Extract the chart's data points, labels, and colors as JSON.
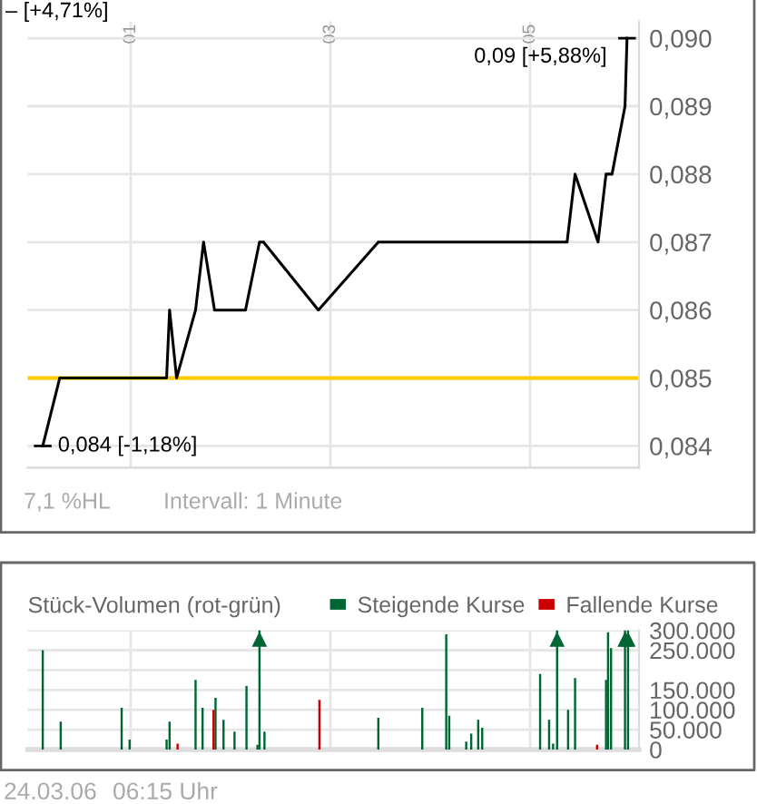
{
  "chart_data": [
    {
      "type": "line",
      "x": [
        0.12,
        0.29,
        1.36,
        1.39,
        1.46,
        1.65,
        1.73,
        1.84,
        2.15,
        2.29,
        2.33,
        2.88,
        3.48,
        5.37,
        5.45,
        5.68,
        5.76,
        5.82,
        5.95,
        5.97
      ],
      "series": [
        {
          "color": "#000000",
          "values": [
            0.084,
            0.085,
            0.085,
            0.086,
            0.085,
            0.086,
            0.087,
            0.086,
            0.086,
            0.087,
            0.087,
            0.086,
            0.087,
            0.087,
            0.088,
            0.087,
            0.088,
            0.088,
            0.089,
            0.09
          ]
        }
      ],
      "xlim": [
        -0.03,
        6.09
      ],
      "xticks": [
        {
          "value": 1,
          "label": "01"
        },
        {
          "value": 3,
          "label": "03"
        },
        {
          "value": 5,
          "label": "05"
        }
      ],
      "ylim": [
        0.08368,
        0.09025
      ],
      "yticks": [
        {
          "value": 0.084,
          "label": "0,084"
        },
        {
          "value": 0.085,
          "label": "0,085"
        },
        {
          "value": 0.086,
          "label": "0,086"
        },
        {
          "value": 0.087,
          "label": "0,087"
        },
        {
          "value": 0.088,
          "label": "0,088"
        },
        {
          "value": 0.089,
          "label": "0,089"
        },
        {
          "value": 0.09,
          "label": "0,090"
        }
      ],
      "ref_lines": [
        {
          "axis": "y",
          "value": 0.085,
          "color": "#ffcc00"
        }
      ],
      "grid": true,
      "annotations": [
        "– [+4,71%]",
        {
          "text": "0,09 [+5,88%]",
          "x": 5.97,
          "y": 0.09
        },
        {
          "text": "0,084 [-1,18%]",
          "x": 0.12,
          "y": 0.084
        },
        "7,1 %HL",
        "Intervall: 1 Minute"
      ]
    },
    {
      "type": "bar",
      "title": "Stück-Volumen (rot-grün)",
      "series": [
        {
          "name": "Steigende Kurse",
          "color": "#006633",
          "x": [
            0.12,
            0.3,
            0.91,
            0.99,
            1.36,
            1.39,
            1.65,
            1.72,
            1.85,
            1.93,
            2.04,
            2.16,
            2.27,
            2.29,
            2.34,
            3.48,
            3.92,
            4.16,
            4.19,
            4.36,
            4.41,
            4.48,
            4.52,
            5.1,
            5.19,
            5.23,
            5.27,
            5.38,
            5.45,
            5.76,
            5.78,
            5.81,
            5.95,
            5.98
          ],
          "values": [
            250000,
            70000,
            105000,
            25000,
            25000,
            70000,
            175000,
            105000,
            130000,
            75000,
            45000,
            160000,
            12000,
            300000,
            45000,
            80000,
            105000,
            290000,
            85000,
            20000,
            40000,
            75000,
            55000,
            190000,
            75000,
            15000,
            300000,
            100000,
            180000,
            175000,
            295000,
            255000,
            300000,
            300000
          ]
        },
        {
          "name": "Fallende Kurse",
          "color": "#cc0000",
          "x": [
            1.47,
            1.83,
            2.89,
            5.67
          ],
          "values": [
            15000,
            100000,
            125000,
            12000
          ]
        }
      ],
      "xlim": [
        -0.03,
        6.09
      ],
      "xticks": [
        {
          "value": 1,
          "label": null
        },
        {
          "value": 3,
          "label": null
        },
        {
          "value": 5,
          "label": null
        }
      ],
      "ylim": [
        0,
        300000
      ],
      "yticks": [
        0,
        {
          "value": 50000,
          "label": "50.000"
        },
        {
          "value": 100000,
          "label": "100.000"
        },
        {
          "value": 150000,
          "label": "150.000"
        },
        {
          "value": 200000,
          "label": null
        },
        {
          "value": 250000,
          "label": "250.000"
        },
        {
          "value": 300000,
          "label": "300.000"
        }
      ],
      "tick_labels": "y",
      "grid": true,
      "legend": "top right",
      "annotations": [
        "24.03.06",
        "06:15 Uhr"
      ]
    }
  ]
}
